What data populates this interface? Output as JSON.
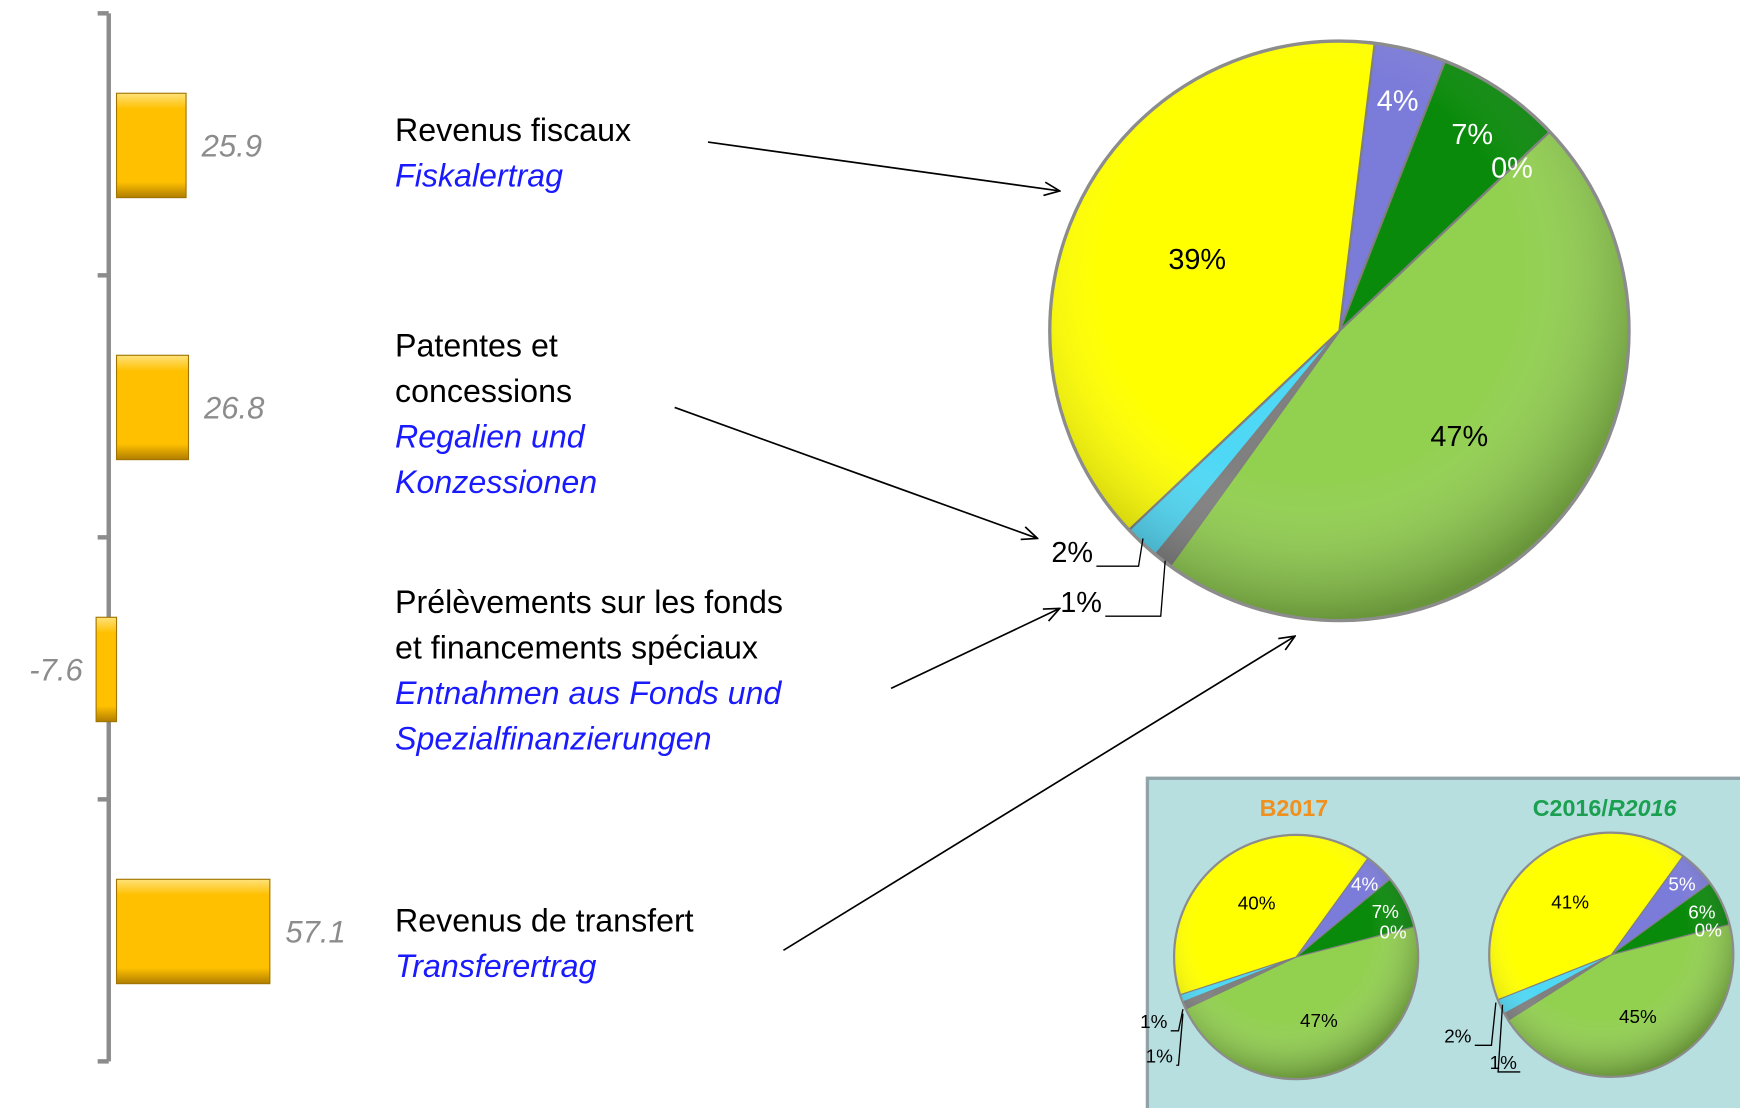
{
  "chart_data": [
    {
      "type": "bar",
      "orientation": "horizontal",
      "categories": [
        [
          "Revenus fiscaux"
        ],
        [
          "Patentes et",
          "concessions"
        ],
        [
          "Prélèvements sur les fonds",
          "et financements spéciaux"
        ],
        [
          "Revenus de transfert"
        ]
      ],
      "categories_translation": [
        [
          "Fiskalertrag"
        ],
        [
          "Regalien und",
          "Konzessionen"
        ],
        [
          "Entnahmen aus Fonds und",
          "Spezialfinanzierungen"
        ],
        [
          "Transferertrag"
        ]
      ],
      "values": [
        25.9,
        26.8,
        -7.6,
        57.1
      ],
      "color": "#ffc000"
    },
    {
      "type": "pie",
      "values": [
        4,
        7,
        0,
        47,
        1,
        2,
        39
      ],
      "value_labels": [
        "4%",
        "7%",
        "0%",
        "47%",
        "1%",
        "2%",
        "39%"
      ],
      "colors": [
        "#7b7bd9",
        "#0a8a0a",
        "#a0a0a0",
        "#92d050",
        "#808080",
        "#4fd8f5",
        "#ffff00"
      ]
    },
    {
      "type": "pie",
      "title": "B2017",
      "values": [
        4,
        7,
        0,
        47,
        1,
        1,
        40
      ],
      "value_labels": [
        "4%",
        "7%",
        "0%",
        "47%",
        "1%",
        "1%",
        "40%"
      ],
      "colors": [
        "#7b7bd9",
        "#0a8a0a",
        "#a0a0a0",
        "#92d050",
        "#808080",
        "#4fd8f5",
        "#ffff00"
      ]
    },
    {
      "type": "pie",
      "title": "C2016/",
      "title_translation": "R2016",
      "values": [
        5,
        6,
        0,
        45,
        1,
        2,
        41
      ],
      "value_labels": [
        "5%",
        "6%",
        "0%",
        "45%",
        "1%",
        "2%",
        "41%"
      ],
      "colors": [
        "#7b7bd9",
        "#0a8a0a",
        "#a0a0a0",
        "#92d050",
        "#808080",
        "#4fd8f5",
        "#ffff00"
      ]
    }
  ]
}
